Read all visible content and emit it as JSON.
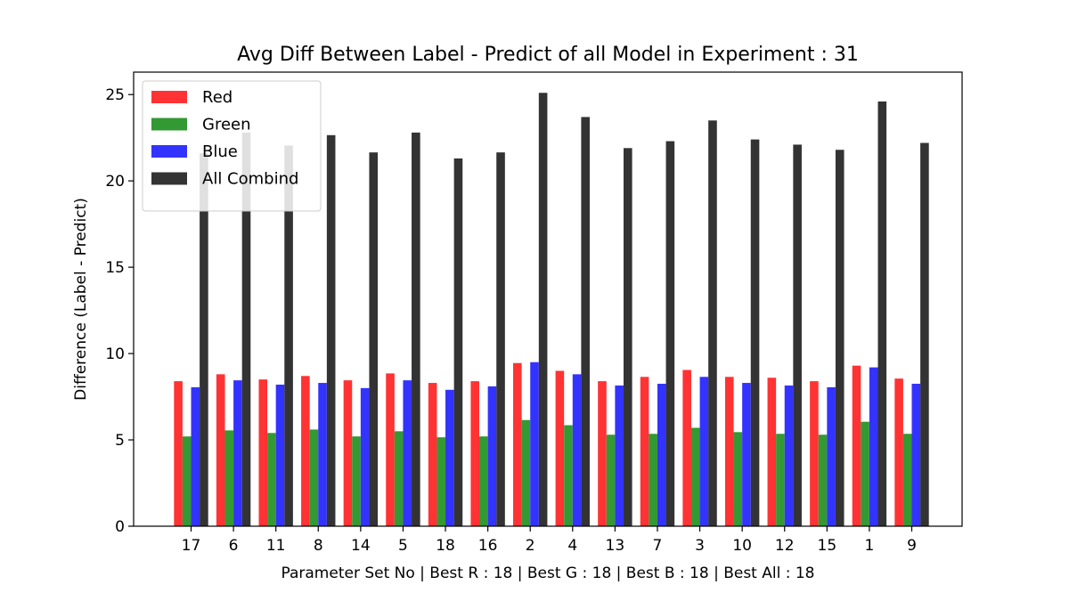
{
  "chart_data": {
    "type": "bar",
    "title": "Avg Diff Between Label - Predict of all Model in Experiment : 31",
    "xlabel": "Parameter Set No | Best R : 18 | Best G : 18 | Best B : 18 | Best All : 18",
    "ylabel": "Difference (Label - Predict)",
    "ylim": [
      0,
      26.3
    ],
    "yticks": [
      0,
      5,
      10,
      15,
      20,
      25
    ],
    "categories": [
      "17",
      "6",
      "11",
      "8",
      "14",
      "5",
      "18",
      "16",
      "2",
      "4",
      "13",
      "7",
      "3",
      "10",
      "12",
      "15",
      "1",
      "9"
    ],
    "series": [
      {
        "name": "Red",
        "color": "#ff3333",
        "values": [
          8.4,
          8.8,
          8.5,
          8.7,
          8.45,
          8.85,
          8.3,
          8.4,
          9.45,
          9.0,
          8.4,
          8.65,
          9.05,
          8.65,
          8.6,
          8.4,
          9.3,
          8.55
        ]
      },
      {
        "name": "Green",
        "color": "#339933",
        "values": [
          5.2,
          5.55,
          5.4,
          5.6,
          5.2,
          5.5,
          5.15,
          5.2,
          6.15,
          5.85,
          5.3,
          5.35,
          5.7,
          5.45,
          5.35,
          5.3,
          6.05,
          5.35
        ]
      },
      {
        "name": "Blue",
        "color": "#3333ff",
        "values": [
          8.05,
          8.45,
          8.2,
          8.3,
          8.0,
          8.45,
          7.9,
          8.1,
          9.5,
          8.8,
          8.15,
          8.25,
          8.65,
          8.3,
          8.15,
          8.05,
          9.2,
          8.25
        ]
      },
      {
        "name": "All Combind",
        "color": "#333333",
        "values": [
          21.6,
          22.8,
          22.05,
          22.65,
          21.65,
          22.8,
          21.3,
          21.65,
          25.1,
          23.7,
          21.9,
          22.3,
          23.5,
          22.4,
          22.1,
          21.8,
          24.6,
          22.2
        ]
      }
    ],
    "legend_position": "top-left",
    "grid": false
  }
}
